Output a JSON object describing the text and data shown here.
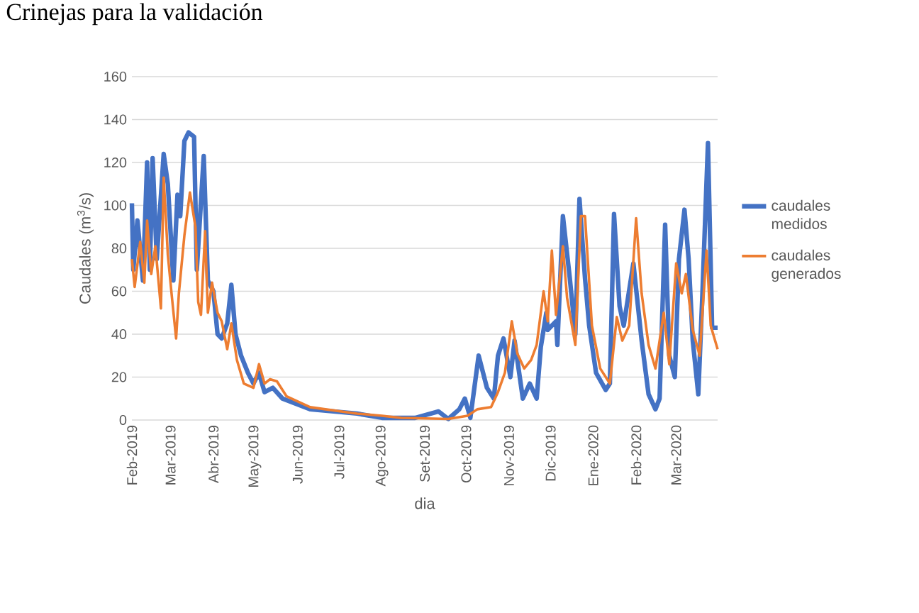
{
  "chart_data": {
    "type": "line",
    "title": "Crinejas para la validación",
    "xlabel": "dia",
    "ylabel": "Caudales (m$^{3}$/s)",
    "xlim": [
      "2019-02-01",
      "2020-03-31"
    ],
    "xticks": [
      {
        "value": "2019-02-01",
        "label": "Feb-2019"
      },
      {
        "value": "2019-03-01",
        "label": "Mar-2019"
      },
      {
        "value": "2019-04-01",
        "label": "Abr-2019"
      },
      {
        "value": "2019-05-01",
        "label": "May-2019"
      },
      {
        "value": "2019-06-01",
        "label": "Jun-2019"
      },
      {
        "value": "2019-07-01",
        "label": "Jul-2019"
      },
      {
        "value": "2019-08-01",
        "label": "Ago-2019"
      },
      {
        "value": "2019-09-01",
        "label": "Set-2019"
      },
      {
        "value": "2019-10-01",
        "label": "Oct-2019"
      },
      {
        "value": "2019-11-01",
        "label": "Nov-2019"
      },
      {
        "value": "2019-12-01",
        "label": "Dic-2019"
      },
      {
        "value": "2020-01-01",
        "label": "Ene-2020"
      },
      {
        "value": "2020-02-01",
        "label": "Feb-2020"
      },
      {
        "value": "2020-03-01",
        "label": "Mar-2020"
      }
    ],
    "ylim": [
      0,
      160
    ],
    "yticks": [
      0,
      20,
      40,
      60,
      80,
      100,
      120,
      140,
      160
    ],
    "grid": "y",
    "legend": "right",
    "marker": "none",
    "line_style": "solid",
    "series": [
      {
        "name": "caudales medidos",
        "color": "#4472c4",
        "x": [
          "2019-02-01",
          "2019-02-02",
          "2019-02-05",
          "2019-02-09",
          "2019-02-12",
          "2019-02-14",
          "2019-02-16",
          "2019-02-19",
          "2019-02-24",
          "2019-02-27",
          "2019-03-03",
          "2019-03-06",
          "2019-03-08",
          "2019-03-11",
          "2019-03-14",
          "2019-03-18",
          "2019-03-20",
          "2019-03-25",
          "2019-03-28",
          "2019-04-01",
          "2019-04-04",
          "2019-04-07",
          "2019-04-11",
          "2019-04-14",
          "2019-04-17",
          "2019-04-21",
          "2019-04-26",
          "2019-04-30",
          "2019-05-04",
          "2019-05-08",
          "2019-05-14",
          "2019-05-21",
          "2019-06-10",
          "2019-07-14",
          "2019-08-01",
          "2019-08-25",
          "2019-09-11",
          "2019-09-18",
          "2019-09-26",
          "2019-09-30",
          "2019-10-04",
          "2019-10-10",
          "2019-10-16",
          "2019-10-21",
          "2019-10-24",
          "2019-10-28",
          "2019-11-02",
          "2019-11-05",
          "2019-11-11",
          "2019-11-16",
          "2019-11-21",
          "2019-11-24",
          "2019-11-28",
          "2019-11-29",
          "2019-12-05",
          "2019-12-06",
          "2019-12-10",
          "2019-12-15",
          "2019-12-19",
          "2019-12-22",
          "2019-12-26",
          "2019-12-29",
          "2020-01-03",
          "2020-01-10",
          "2020-01-13",
          "2020-01-16",
          "2020-01-20",
          "2020-01-23",
          "2020-01-30",
          "2020-02-05",
          "2020-02-10",
          "2020-02-15",
          "2020-02-18",
          "2020-02-22",
          "2020-02-25",
          "2020-02-29",
          "2020-03-03",
          "2020-03-07",
          "2020-03-10",
          "2020-03-13",
          "2020-03-17",
          "2020-03-20",
          "2020-03-24",
          "2020-03-27",
          "2020-03-31"
        ],
        "values": [
          101,
          70,
          93,
          65,
          120,
          70,
          122,
          75,
          124,
          110,
          65,
          105,
          95,
          130,
          134,
          132,
          70,
          123,
          65,
          60,
          40,
          38,
          45,
          63,
          40,
          30,
          22,
          17,
          22,
          13,
          15,
          10,
          5,
          3,
          1,
          1,
          4,
          0.5,
          5,
          10,
          1,
          30,
          15,
          10,
          30,
          38,
          20,
          37,
          10,
          17,
          10,
          34,
          50,
          42,
          46,
          35,
          95,
          66,
          40,
          103,
          66,
          44,
          22,
          14,
          17,
          96,
          53,
          44,
          73,
          37,
          12,
          5,
          10,
          91,
          30,
          20,
          75,
          98,
          75,
          37,
          12,
          59,
          129,
          43,
          43
        ]
      },
      {
        "name": "caudales generados",
        "color": "#ed7d31",
        "x": [
          "2019-02-01",
          "2019-02-03",
          "2019-02-07",
          "2019-02-10",
          "2019-02-12",
          "2019-02-15",
          "2019-02-18",
          "2019-02-22",
          "2019-02-24",
          "2019-02-27",
          "2019-03-02",
          "2019-03-05",
          "2019-03-07",
          "2019-03-11",
          "2019-03-15",
          "2019-03-19",
          "2019-03-21",
          "2019-03-23",
          "2019-03-26",
          "2019-03-28",
          "2019-03-31",
          "2019-04-04",
          "2019-04-07",
          "2019-04-11",
          "2019-04-14",
          "2019-04-18",
          "2019-04-23",
          "2019-04-30",
          "2019-05-04",
          "2019-05-08",
          "2019-05-12",
          "2019-05-17",
          "2019-05-24",
          "2019-06-10",
          "2019-07-14",
          "2019-08-01",
          "2019-08-15",
          "2019-09-18",
          "2019-10-02",
          "2019-10-09",
          "2019-10-19",
          "2019-10-24",
          "2019-10-29",
          "2019-11-03",
          "2019-11-07",
          "2019-11-12",
          "2019-11-17",
          "2019-11-21",
          "2019-11-26",
          "2019-11-29",
          "2019-12-02",
          "2019-12-05",
          "2019-12-10",
          "2019-12-13",
          "2019-12-19",
          "2019-12-23",
          "2019-12-26",
          "2019-12-31",
          "2020-01-06",
          "2020-01-13",
          "2020-01-18",
          "2020-01-22",
          "2020-01-27",
          "2020-02-01",
          "2020-02-05",
          "2020-02-10",
          "2020-02-15",
          "2020-02-21",
          "2020-02-25",
          "2020-03-01",
          "2020-03-05",
          "2020-03-08",
          "2020-03-13",
          "2020-03-18",
          "2020-03-23",
          "2020-03-26",
          "2020-03-31"
        ],
        "values": [
          75,
          62,
          83,
          64,
          93,
          68,
          81,
          52,
          113,
          77,
          57,
          38,
          59,
          86,
          106,
          90,
          55,
          49,
          88,
          50,
          64,
          50,
          46,
          33,
          45,
          28,
          17,
          15,
          26,
          17,
          19,
          18,
          11,
          6,
          3,
          2,
          1,
          0.5,
          2,
          5,
          6,
          13,
          22,
          46,
          31,
          24,
          28,
          35,
          60,
          46,
          79,
          49,
          81,
          57,
          35,
          95,
          95,
          44,
          24,
          17,
          48,
          37,
          44,
          94,
          59,
          35,
          24,
          50,
          26,
          73,
          59,
          68,
          42,
          30,
          79,
          44,
          33
        ]
      }
    ]
  }
}
